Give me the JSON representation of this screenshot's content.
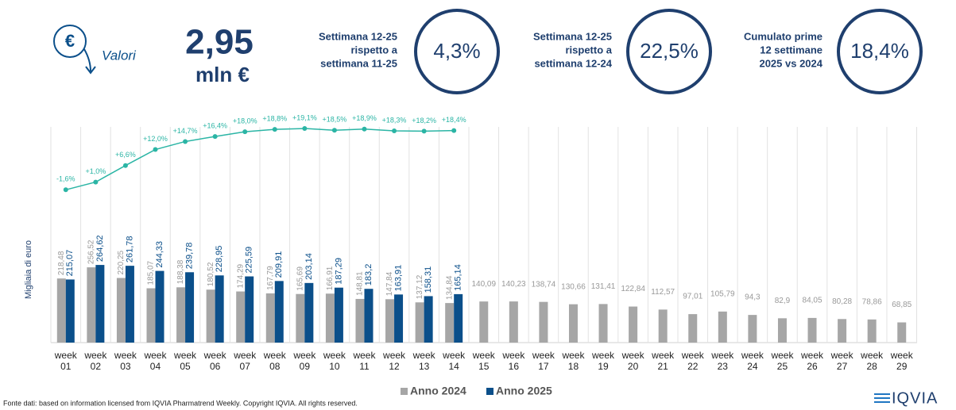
{
  "header": {
    "icon_label": "Valori",
    "total_value": "2,95",
    "total_unit": "mln €",
    "kpis": [
      {
        "lines": [
          "Settimana 12-25",
          "rispetto a",
          "settimana 11-25"
        ],
        "value": "4,3%"
      },
      {
        "lines": [
          "Settimana 12-25",
          "rispetto a",
          "settimana 12-24"
        ],
        "value": "22,5%"
      },
      {
        "lines": [
          "Cumulato prime",
          "12 settimane",
          "2025 vs 2024"
        ],
        "value": "18,4%"
      }
    ]
  },
  "chart_data": {
    "type": "bar",
    "y_label": "Migliaia di euro",
    "ylim": [
      0,
      300
    ],
    "y2lim": [
      -5,
      25
    ],
    "categories": [
      "week 01",
      "week 02",
      "week 03",
      "week 04",
      "week 05",
      "week 06",
      "week 07",
      "week 08",
      "week 09",
      "week 10",
      "week 11",
      "week 12",
      "week 13",
      "week 14",
      "week 15",
      "week 16",
      "week 17",
      "week 18",
      "week 19",
      "week 20",
      "week 21",
      "week 22",
      "week 23",
      "week 24",
      "week 25",
      "week 26",
      "week 27",
      "week 28",
      "week 29"
    ],
    "series": [
      {
        "name": "Anno 2024",
        "color": "#a6a6a6",
        "values": [
          218.48,
          256.52,
          220.25,
          185.07,
          188.38,
          180.52,
          174.29,
          167.79,
          165.69,
          166.91,
          148.81,
          147.84,
          137.12,
          134.84,
          140.09,
          140.23,
          138.74,
          130.66,
          131.41,
          122.84,
          112.57,
          97.01,
          105.79,
          94.3,
          82.9,
          84.05,
          80.28,
          78.86,
          68.85
        ],
        "value_labels": [
          "218,48",
          "256,52",
          "220,25",
          "185,07",
          "188,38",
          "180,52",
          "174,29",
          "167,79",
          "165,69",
          "166,91",
          "148,81",
          "147,84",
          "137,12",
          "134,84",
          "140,09",
          "140,23",
          "138,74",
          "130,66",
          "131,41",
          "122,84",
          "112,57",
          "97,01",
          "105,79",
          "94,3",
          "82,9",
          "84,05",
          "80,28",
          "78,86",
          "68,85"
        ]
      },
      {
        "name": "Anno 2025",
        "color": "#0b4f8a",
        "values": [
          215.07,
          264.62,
          261.78,
          244.33,
          239.78,
          228.95,
          225.59,
          209.91,
          203.14,
          187.29,
          183.2,
          163.91,
          158.31,
          165.14,
          null,
          null,
          null,
          null,
          null,
          null,
          null,
          null,
          null,
          null,
          null,
          null,
          null,
          null,
          null
        ],
        "value_labels": [
          "215,07",
          "264,62",
          "261,78",
          "244,33",
          "239,78",
          "228,95",
          "225,59",
          "209,91",
          "203,14",
          "187,29",
          "183,2",
          "163,91",
          "158,31",
          "165,14",
          null,
          null,
          null,
          null,
          null,
          null,
          null,
          null,
          null,
          null,
          null,
          null,
          null,
          null,
          null
        ]
      },
      {
        "name": "Cumulato",
        "color": "#2bb5a5",
        "axis": "y2",
        "legend": false,
        "values": [
          -1.6,
          1.0,
          6.6,
          12.0,
          14.7,
          16.4,
          18.0,
          18.8,
          19.1,
          18.5,
          18.9,
          18.3,
          18.2,
          18.4,
          null,
          null,
          null,
          null,
          null,
          null,
          null,
          null,
          null,
          null,
          null,
          null,
          null,
          null,
          null
        ],
        "value_labels": [
          "-1,6%",
          "+1,0%",
          "+6,6%",
          "+12,0%",
          "+14,7%",
          "+16,4%",
          "+18,0%",
          "+18,8%",
          "+19,1%",
          "+18,5%",
          "+18,9%",
          "+18,3%",
          "+18,2%",
          "+18,4%",
          null,
          null,
          null,
          null,
          null,
          null,
          null,
          null,
          null,
          null,
          null,
          null,
          null,
          null,
          null
        ]
      }
    ]
  },
  "footer": {
    "source": "Fonte dati: based on information licensed from IQVIA Pharmatrend Weekly. Copyright IQVIA. All rights reserved.",
    "logo": "IQVIA"
  }
}
